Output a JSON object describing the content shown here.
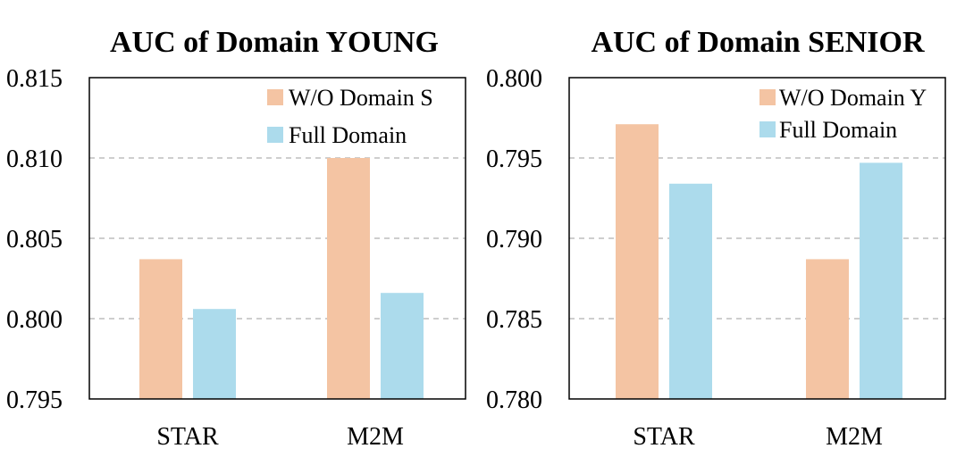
{
  "chart_data": [
    {
      "type": "bar",
      "title": "AUC of Domain YOUNG",
      "categories": [
        "STAR",
        "M2M"
      ],
      "series": [
        {
          "name": "W/O Domain S",
          "values": [
            0.8037,
            0.81
          ],
          "color": "#f4c4a3"
        },
        {
          "name": "Full Domain",
          "values": [
            0.8006,
            0.8016
          ],
          "color": "#acdbec"
        }
      ],
      "ylim": [
        0.795,
        0.815
      ],
      "yticks": [
        "0.795",
        "0.800",
        "0.805",
        "0.810",
        "0.815"
      ],
      "ytick_values": [
        0.795,
        0.8,
        0.805,
        0.81,
        0.815
      ],
      "grid_values": [
        0.8,
        0.805,
        0.81
      ],
      "grid": true,
      "legend_position": "top-right",
      "xlabel": "",
      "ylabel": ""
    },
    {
      "type": "bar",
      "title": "AUC of Domain SENIOR",
      "categories": [
        "STAR",
        "M2M"
      ],
      "series": [
        {
          "name": "W/O Domain Y",
          "values": [
            0.7971,
            0.7887
          ],
          "color": "#f4c4a3"
        },
        {
          "name": "Full Domain",
          "values": [
            0.7934,
            0.7947
          ],
          "color": "#acdbec"
        }
      ],
      "ylim": [
        0.78,
        0.8
      ],
      "yticks": [
        "0.780",
        "0.785",
        "0.790",
        "0.795",
        "0.800"
      ],
      "ytick_values": [
        0.78,
        0.785,
        0.79,
        0.795,
        0.8
      ],
      "grid_values": [
        0.785,
        0.79,
        0.795
      ],
      "grid": true,
      "legend_position": "top-right",
      "xlabel": "",
      "ylabel": ""
    }
  ]
}
